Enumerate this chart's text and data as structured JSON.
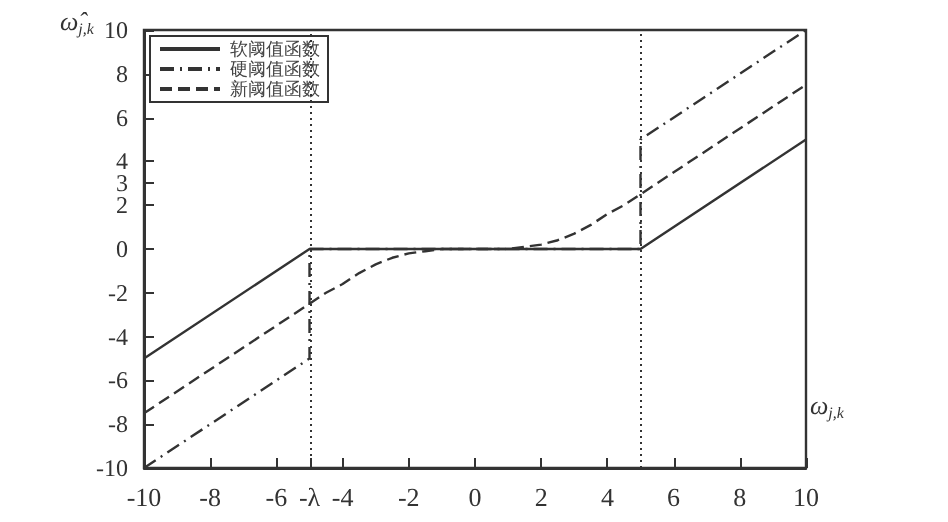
{
  "chart_data": {
    "type": "line",
    "xlabel": "ω$_{j,k}$",
    "ylabel": "ω̂$_{j,k}$",
    "xlim": [
      -10,
      10
    ],
    "xticks": [
      -10,
      -8,
      -6,
      {
        "value": -5,
        "label": "-λ"
      },
      -4,
      -2,
      0,
      2,
      4,
      6,
      8,
      10
    ],
    "ylim": [
      -10,
      10
    ],
    "yticks": [
      -10,
      -8,
      -6,
      -4,
      -2,
      0,
      2,
      3,
      4,
      6,
      8,
      10
    ],
    "series": [
      {
        "name": "软阈值函数",
        "color": "#333333",
        "line_style": "solid",
        "x": [
          -10,
          -5,
          5,
          10
        ],
        "values": [
          -5,
          0,
          0,
          5
        ]
      },
      {
        "name": "硬阈值函数",
        "color": "#333333",
        "line_style": "dashdot",
        "x": [
          -10,
          -5,
          -5,
          5,
          5,
          10
        ],
        "values": [
          -10,
          -5,
          0,
          0,
          5,
          10
        ]
      },
      {
        "name": "新阈值函数",
        "color": "#333333",
        "line_style": "dashed",
        "x": [
          -10,
          -5,
          -4.5,
          -4,
          -3.5,
          -3,
          -2.5,
          -2,
          -1.5,
          -1,
          0,
          1,
          1.5,
          2,
          2.5,
          3,
          3.5,
          4,
          4.5,
          5,
          10
        ],
        "values": [
          -7.5,
          -2.5,
          -2.0,
          -1.6,
          -1.1,
          -0.7,
          -0.4,
          -0.2,
          -0.1,
          0,
          0,
          0,
          0.1,
          0.2,
          0.4,
          0.7,
          1.1,
          1.6,
          2.0,
          2.5,
          7.5
        ]
      }
    ],
    "ref_lines": [
      {
        "axis": "x",
        "value": -5,
        "line_style": "dotted",
        "color": "#333333"
      },
      {
        "axis": "x",
        "value": 5,
        "line_style": "dotted",
        "color": "#333333"
      }
    ],
    "marker": "none",
    "grid": false,
    "legend": "top left"
  }
}
